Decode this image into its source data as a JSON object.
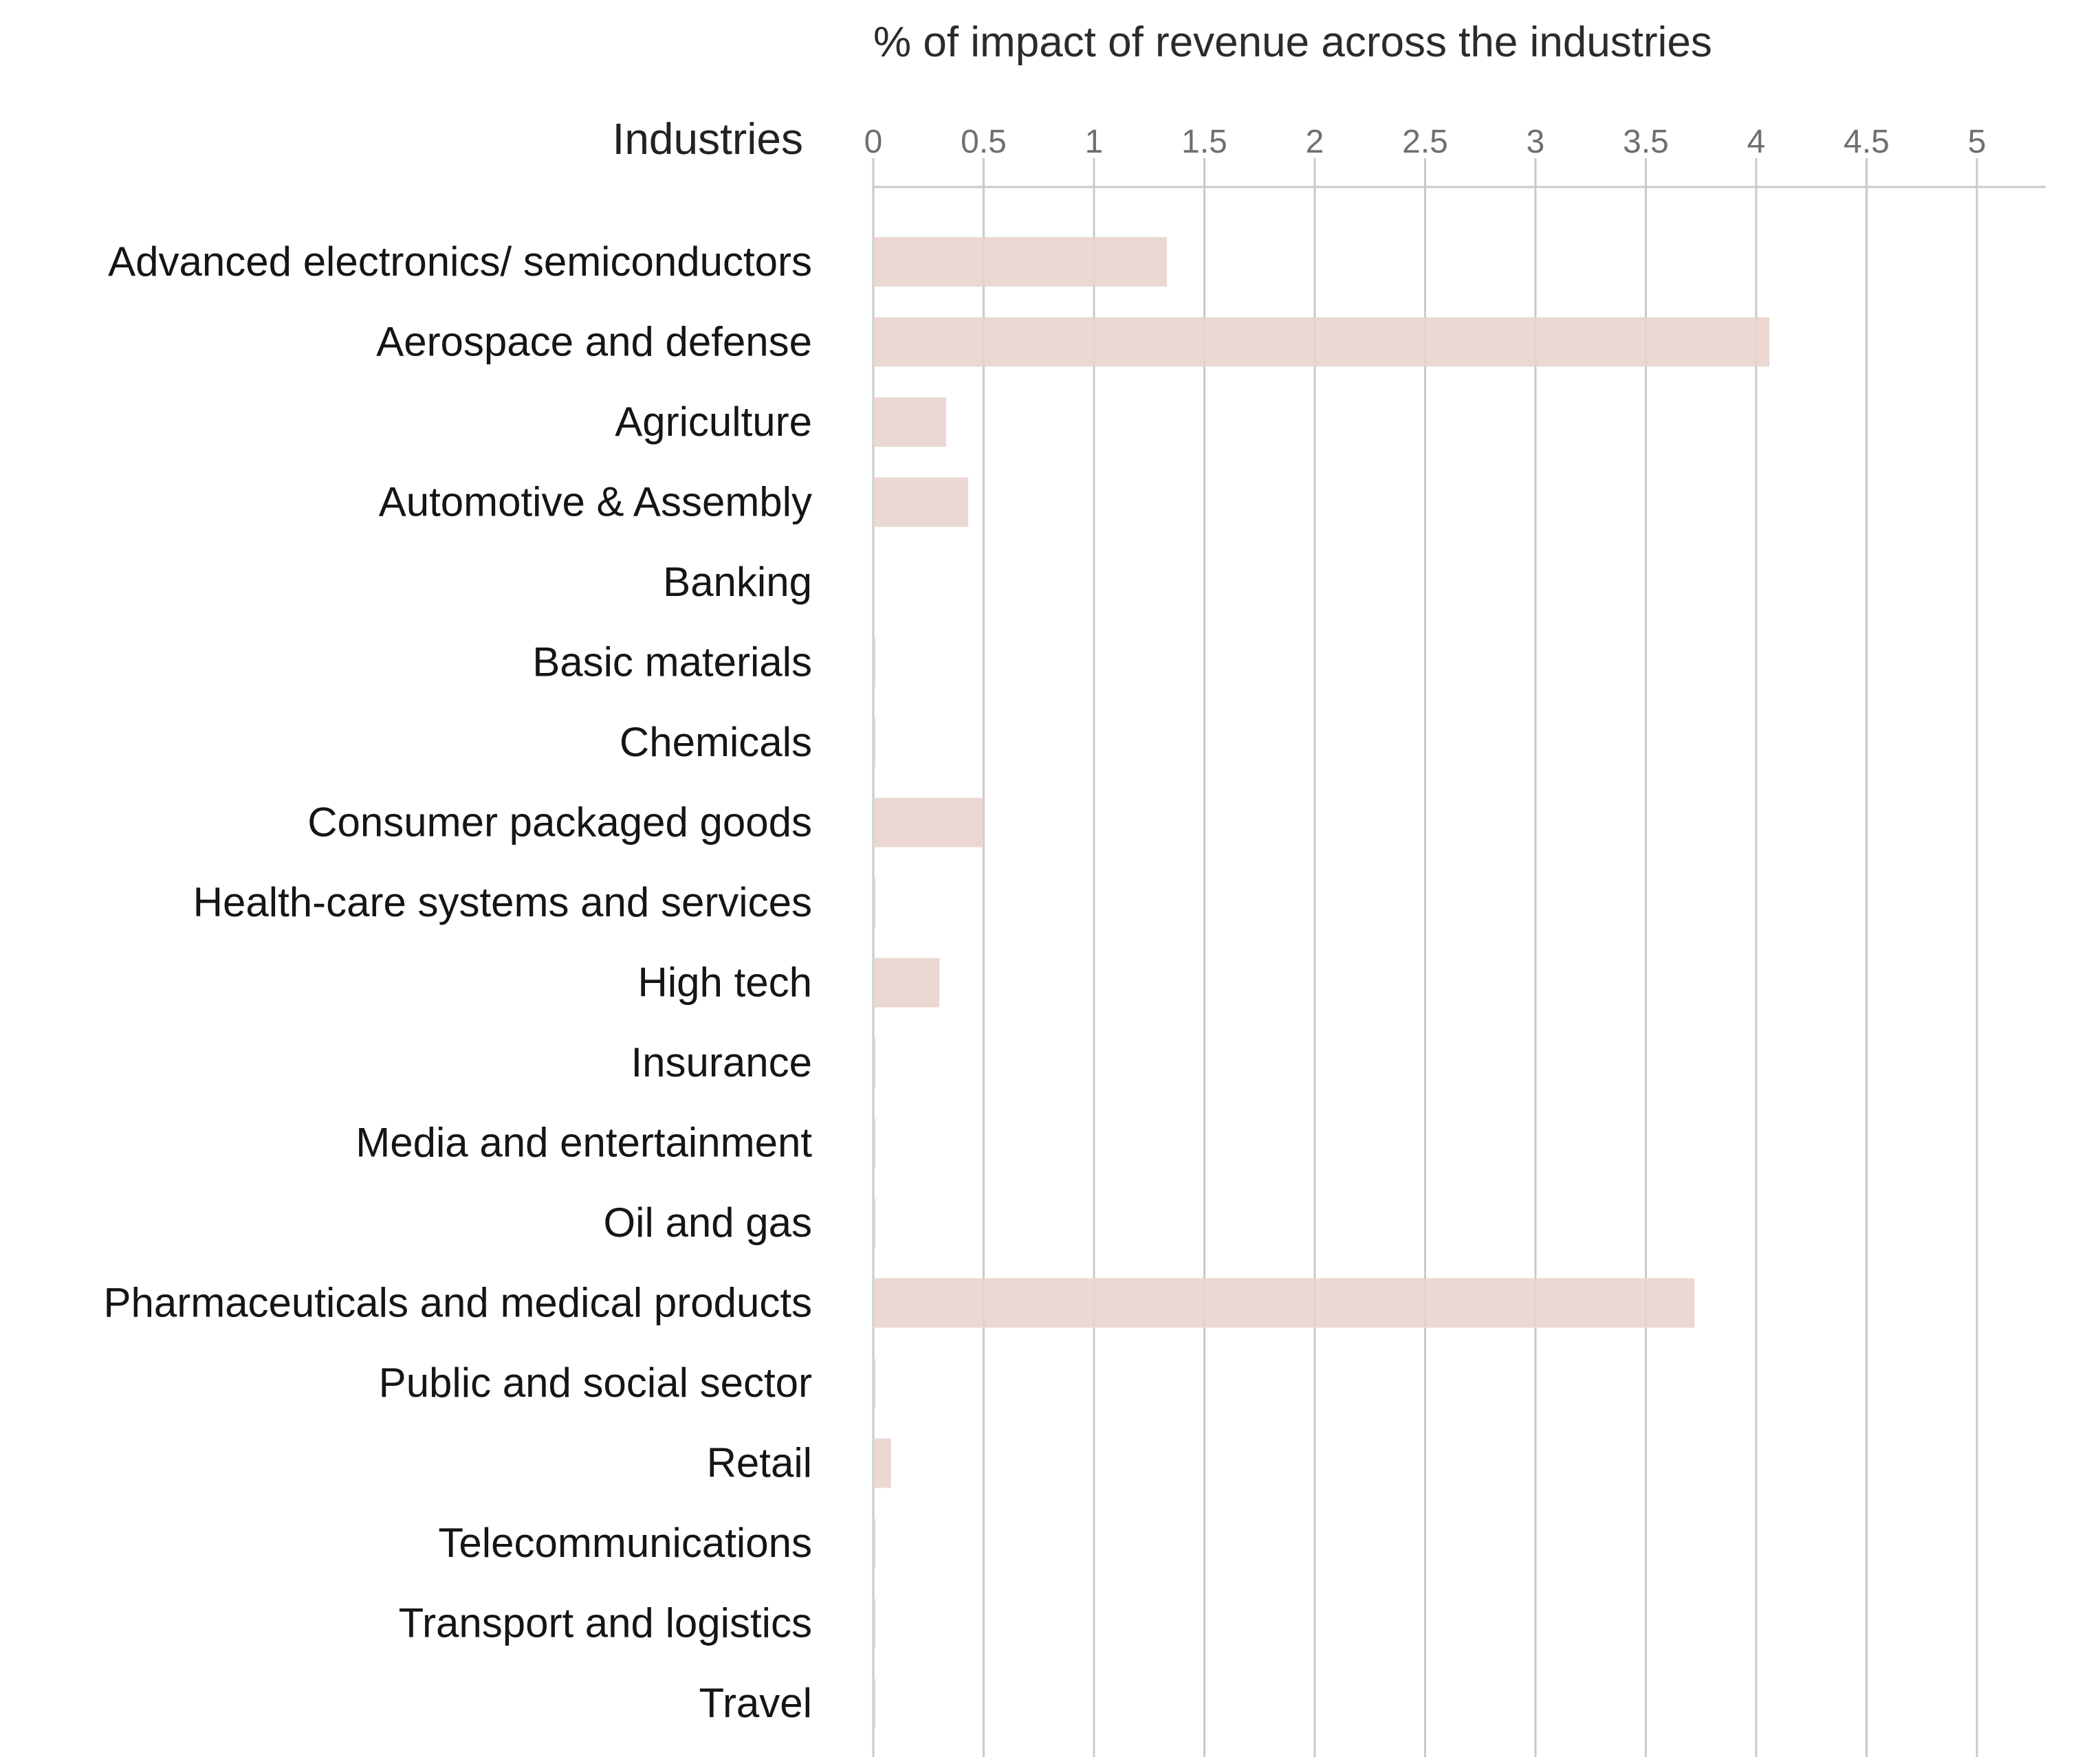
{
  "chart_data": {
    "type": "bar",
    "orientation": "horizontal",
    "title": "% of impact of revenue across the industries",
    "category_header": "Industries",
    "xlabel": "% of impact of revenue across the industries",
    "ylabel": "Industries",
    "xlim": [
      0,
      5.3
    ],
    "ticks": [
      0,
      0.5,
      1,
      1.5,
      2,
      2.5,
      3,
      3.5,
      4,
      4.5,
      5
    ],
    "tick_labels": [
      "0",
      "0.5",
      "1",
      "1.5",
      "2",
      "2.5",
      "3",
      "3.5",
      "4",
      "4.5",
      "5"
    ],
    "grid": true,
    "bar_color": "#e8d3cd",
    "grid_color": "#c9c9c9",
    "categories": [
      "Advanced electronics/ semiconductors",
      "Aerospace and defense",
      "Agriculture",
      "Automotive & Assembly",
      "Banking",
      "Basic materials",
      "Chemicals",
      "Consumer packaged goods",
      "Health-care systems and services",
      "High tech",
      "Insurance",
      "Media and entertainment",
      "Oil and gas",
      "Pharmaceuticals and medical products",
      "Public and social sector",
      "Retail",
      "Telecommunications",
      "Transport and logistics",
      "Travel"
    ],
    "values": [
      1.33,
      4.06,
      0.33,
      0.43,
      0,
      0.01,
      0.01,
      0.5,
      0.01,
      0.3,
      0.01,
      0.01,
      0.01,
      3.72,
      0.01,
      0.08,
      0.01,
      0.01,
      0.01
    ]
  }
}
